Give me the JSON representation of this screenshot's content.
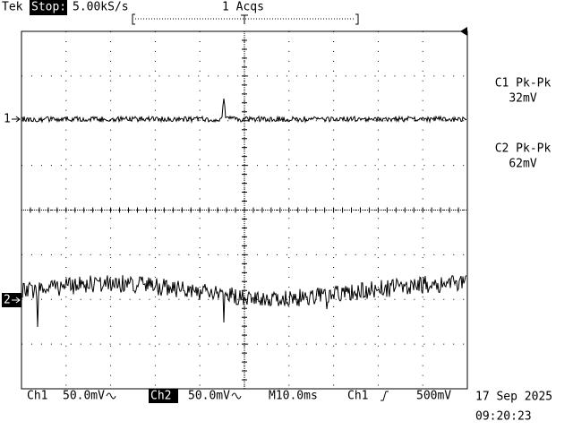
{
  "header": {
    "brand": "Tek",
    "state": "Stop:",
    "sample_rate": "5.00kS/s",
    "acquisitions": "1 Acqs"
  },
  "measurements": [
    {
      "label": "C1 Pk-Pk",
      "value": "32mV"
    },
    {
      "label": "C2 Pk-Pk",
      "value": "62mV"
    }
  ],
  "channel_markers": [
    "1",
    "2"
  ],
  "footer": {
    "ch1_label": "Ch1",
    "ch1_scale": "50.0mV",
    "ch2_label": "Ch2",
    "ch2_scale": "50.0mV",
    "timebase": "M10.0ms",
    "trigger_source": "Ch1",
    "trigger_level": "500mV",
    "date": "17 Sep 2025",
    "time": "09:20:23"
  }
}
